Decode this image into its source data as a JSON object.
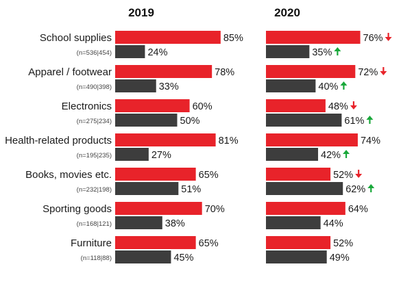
{
  "chart_data": {
    "type": "bar",
    "orientation": "horizontal",
    "panels": [
      "2019",
      "2020"
    ],
    "colors": {
      "top_bar": "#e8232a",
      "bottom_bar": "#3d3d3d",
      "up_arrow": "#19a83a",
      "down_arrow": "#e8232a"
    },
    "categories": [
      {
        "label": "School supplies",
        "n": "(n=536|454)",
        "y2019": [
          85,
          24
        ],
        "y2020": [
          76,
          35
        ],
        "arrows": [
          "down",
          "up"
        ]
      },
      {
        "label": "Apparel / footwear",
        "n": "(n=490|398)",
        "y2019": [
          78,
          33
        ],
        "y2020": [
          72,
          40
        ],
        "arrows": [
          "down",
          "up"
        ]
      },
      {
        "label": "Electronics",
        "n": "(n=275|234)",
        "y2019": [
          60,
          50
        ],
        "y2020": [
          48,
          61
        ],
        "arrows": [
          "down",
          "up"
        ]
      },
      {
        "label": "Health-related products",
        "n": "(n=195|235)",
        "y2019": [
          81,
          27
        ],
        "y2020": [
          74,
          42
        ],
        "arrows": [
          "",
          "up"
        ]
      },
      {
        "label": "Books, movies etc.",
        "n": "(n=232|198)",
        "y2019": [
          65,
          51
        ],
        "y2020": [
          52,
          62
        ],
        "arrows": [
          "down",
          "up"
        ]
      },
      {
        "label": "Sporting goods",
        "n": "(n=168|121)",
        "y2019": [
          70,
          38
        ],
        "y2020": [
          64,
          44
        ],
        "arrows": [
          "",
          ""
        ]
      },
      {
        "label": "Furniture",
        "n": "(n=118|88)",
        "y2019": [
          65,
          45
        ],
        "y2020": [
          52,
          49
        ],
        "arrows": [
          "",
          ""
        ]
      }
    ]
  }
}
